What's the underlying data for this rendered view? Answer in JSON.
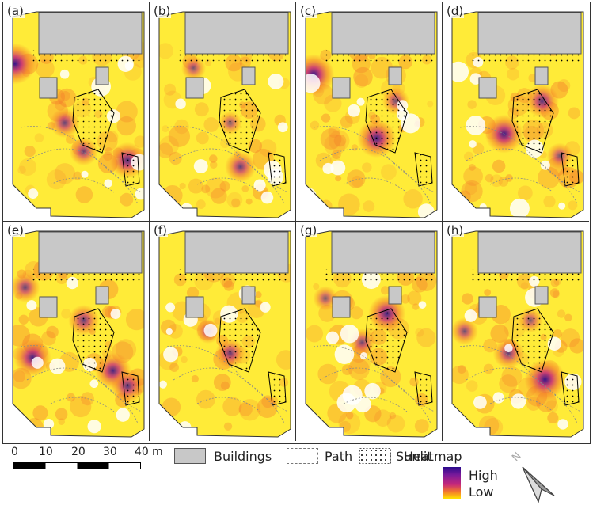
{
  "panels": [
    {
      "label": "(a)",
      "hotspots": [
        [
          0.08,
          0.28,
          1.0
        ],
        [
          0.85,
          0.72,
          0.8
        ],
        [
          0.42,
          0.55,
          0.55
        ],
        [
          0.55,
          0.68,
          0.5
        ]
      ]
    },
    {
      "label": "(b)",
      "hotspots": [
        [
          0.62,
          0.75,
          0.6
        ],
        [
          0.3,
          0.3,
          0.35
        ],
        [
          0.55,
          0.55,
          0.3
        ]
      ]
    },
    {
      "label": "(c)",
      "hotspots": [
        [
          0.12,
          0.33,
          1.0
        ],
        [
          0.55,
          0.62,
          0.9
        ],
        [
          0.68,
          0.45,
          0.45
        ]
      ]
    },
    {
      "label": "(d)",
      "hotspots": [
        [
          0.42,
          0.6,
          0.9
        ],
        [
          0.68,
          0.45,
          0.7
        ],
        [
          0.8,
          0.7,
          0.4
        ]
      ]
    },
    {
      "label": "(e)",
      "hotspots": [
        [
          0.2,
          0.62,
          0.85
        ],
        [
          0.75,
          0.68,
          0.8
        ],
        [
          0.55,
          0.45,
          0.6
        ],
        [
          0.15,
          0.3,
          0.55
        ],
        [
          0.85,
          0.75,
          0.7
        ]
      ]
    },
    {
      "label": "(f)",
      "hotspots": [
        [
          0.55,
          0.6,
          0.55
        ],
        [
          0.4,
          0.5,
          0.35
        ]
      ]
    },
    {
      "label": "(g)",
      "hotspots": [
        [
          0.62,
          0.42,
          0.85
        ],
        [
          0.45,
          0.55,
          0.45
        ],
        [
          0.2,
          0.35,
          0.35
        ]
      ]
    },
    {
      "label": "(h)",
      "hotspots": [
        [
          0.7,
          0.72,
          1.0
        ],
        [
          0.45,
          0.6,
          0.6
        ],
        [
          0.15,
          0.5,
          0.45
        ],
        [
          0.6,
          0.45,
          0.35
        ]
      ]
    }
  ],
  "scale_bar": {
    "ticks": [
      "0",
      "10",
      "20",
      "30",
      "40"
    ],
    "unit": "m"
  },
  "legend": {
    "buildings": "Buildings",
    "path": "Path",
    "sunlit": "Sunlit",
    "heatmap_title": "Heatmap",
    "high": "High",
    "low": "Low",
    "colors": {
      "high": "#2a0a8c",
      "mid": "#c6287a",
      "low": "#ffe500",
      "building": "#c8c8c8"
    }
  },
  "north_arrow": {
    "label": "N"
  }
}
